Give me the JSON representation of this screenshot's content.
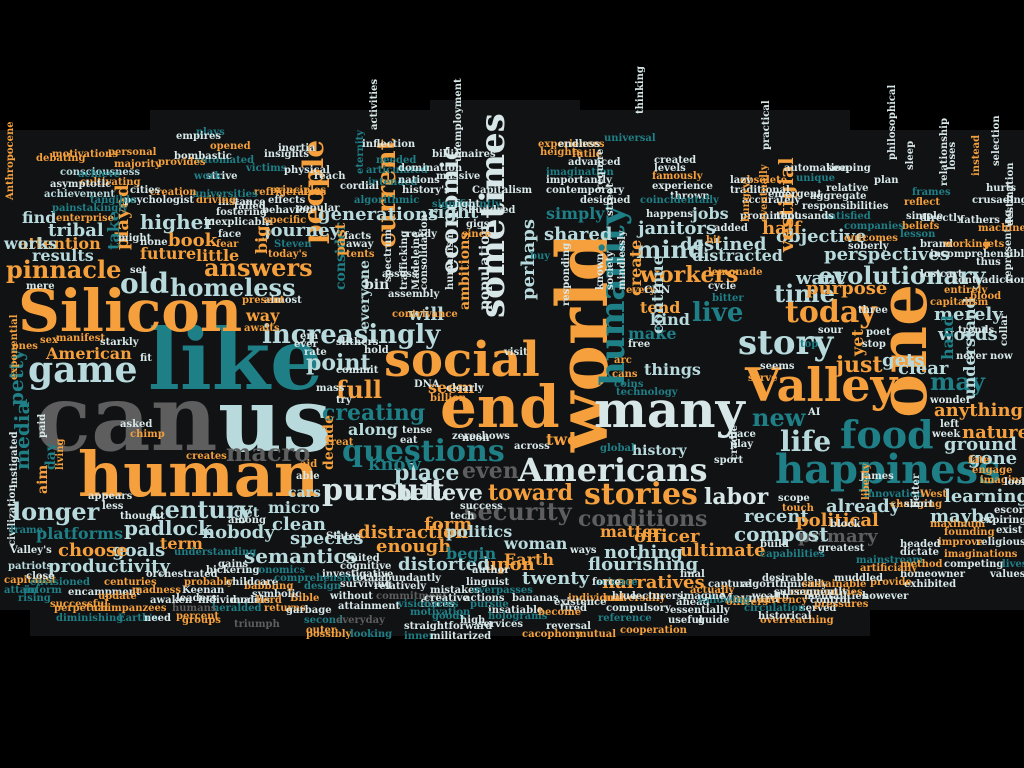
{
  "palette": {
    "background": "#000000",
    "band": "#111214",
    "orange": "#f5a03c",
    "teal": "#1f7f86",
    "light": "#b8dadc",
    "grey": "#5e5e5e",
    "pale": "#d7e7e8"
  },
  "words": {
    "can": "can",
    "us": "us",
    "like": "like",
    "silicon": "Silicon",
    "human": "human",
    "world": "world",
    "one": "one",
    "end": "end",
    "valley": "Valley",
    "social": "social",
    "many": "many",
    "happiness": "happiness",
    "sometimes": "sometimes",
    "humanity": "humanity",
    "food": "food",
    "game": "game",
    "story": "story",
    "americans": "Americans",
    "stories": "stories",
    "questions": "questions",
    "today": "today",
    "life": "life",
    "labor": "labor",
    "increasingly": "increasingly",
    "pinnacle": "pinnacle",
    "old": "old",
    "answers": "answers",
    "homeless": "homeless",
    "people": "people",
    "current": "current",
    "economic": "economic",
    "pursuit": "pursuit",
    "may": "may",
    "evolutionary": "evolutionary",
    "workers": "workers",
    "mind": "mind",
    "live": "live",
    "time": "time",
    "just": "just",
    "new": "new",
    "creating": "creating",
    "point": "point",
    "full": "full",
    "century": "century",
    "longer": "longer",
    "macro": "macro",
    "security": "security",
    "conditions": "conditions",
    "toward": "toward",
    "believe": "believe",
    "even": "even",
    "place": "place",
    "recent": "recent",
    "already": "already",
    "learning": "learning",
    "maybe": "maybe",
    "political": "political",
    "primary": "primary",
    "compost": "compost",
    "officer": "officer",
    "ultimate": "ultimate",
    "nothing": "nothing",
    "flourishing": "flourishing",
    "narratives": "narratives",
    "twenty": "twenty",
    "upon": "upon",
    "earth": "Earth",
    "distorted": "distorted",
    "enough": "enough",
    "semantics": "semantics",
    "species": "species",
    "clean": "clean",
    "nobody": "nobody",
    "padlock": "padlock",
    "goals": "goals",
    "choose": "choose",
    "productivity": "productivity",
    "platforms": "platforms",
    "term": "term",
    "american": "American",
    "petty": "petty",
    "media": "media",
    "results": "results",
    "tribal": "tribal",
    "attention": "attention",
    "works": "works",
    "find": "find",
    "higher": "higher",
    "book": "book",
    "future": "future",
    "little": "little",
    "played": "played",
    "take": "take",
    "journey": "journey",
    "generations": "generations",
    "right": "right",
    "simply": "simply",
    "shared": "shared",
    "perhaps": "perhaps",
    "destined": "destined",
    "distracted": "distracted",
    "janitors": "janitors",
    "jobs": "jobs",
    "half": "half",
    "objective": "objective",
    "perspectives": "perspectives",
    "want": "want",
    "purpose": "purpose",
    "vestigial": "vestigial",
    "merely": "merely",
    "words": "words",
    "understand": "understand",
    "anything": "anything",
    "nature": "nature",
    "ground": "ground",
    "gone": "gone",
    "gets": "gets",
    "clear": "clear",
    "hand": "hand",
    "yet": "yet",
    "kind": "kind",
    "make": "make",
    "tend": "tend",
    "create": "create",
    "things": "things",
    "continue": "continue",
    "will": "will",
    "seem": "seem",
    "along": "along",
    "know": "know",
    "form": "form",
    "distraction": "distraction",
    "begin": "begin",
    "politics": "politics",
    "woman": "woman",
    "matter": "matter",
    "two": "two",
    "history": "history",
    "ambitions": "ambitions",
    "population": "population",
    "everyone": "everyone",
    "consider": "consider",
    "past": "past",
    "decade": "decade",
    "cars": "cars",
    "micro": "micro",
    "get": "get",
    "way": "way",
    "big": "big",
    "might": "might",
    "motivations": "motivations",
    "consciousness": "consciousness",
    "achievement": "achievement",
    "cultivating": "cultivating",
    "painstakingly": "painstakingly",
    "enterprise": "enterprise",
    "debating": "debating",
    "anthropocene": "Anthropocene",
    "exponential": "exponential",
    "inform": "inform",
    "attain": "attain",
    "capitalist": "capitalist",
    "patriots": "patriots",
    "valleys": "Valley's",
    "diminishing": "diminishing",
    "earths": "Earth's",
    "perpetual": "perpetual",
    "chimpanzees": "chimpanzees",
    "encampment": "encampment",
    "successful": "successful",
    "envisioned": "envisioned",
    "update": "update",
    "centuries": "centuries",
    "madness": "madness",
    "orchestrated": "orchestrated",
    "awaken": "awaken",
    "individuals": "individuals",
    "keenan": "Keenan",
    "leaders": "leaders",
    "heralded": "heralded",
    "models": "models",
    "humans": "humans",
    "percent": "percent",
    "groups": "groups",
    "triumph": "triumph",
    "returns": "returns",
    "garbage": "garbage",
    "outer": "outer",
    "second": "second",
    "possibly": "possibly",
    "looking": "looking",
    "everyday": "everyday",
    "attainment": "attainment",
    "without": "without",
    "commitment": "commitment",
    "surviving": "surviving",
    "relatively": "relatively",
    "abundantly": "abundantly",
    "inner": "inner",
    "militarized": "militarized",
    "straightforward": "straightforward",
    "forces": "forces",
    "goods": "goods",
    "high": "high",
    "services": "services",
    "reversal": "reversal",
    "cacophony": "cacophony",
    "mutual": "mutual",
    "cooperation": "cooperation",
    "reference": "reference",
    "compulsory": "compulsory",
    "universally": "universally",
    "guide": "guide",
    "useful": "useful",
    "essentially": "essentially",
    "lecturers": "lecturers",
    "capture": "capture",
    "algorithmically": "algorithmically",
    "maynard": "Maynard",
    "served": "served",
    "circulation": "circulation",
    "overreaching": "overreaching",
    "historical": "historical",
    "mentalities": "mentalities",
    "pressures": "pressures",
    "sustainable": "sustainable",
    "communities": "communities",
    "subsequently": "subsequently",
    "desirable": "desirable",
    "exhibited": "exhibited",
    "homeowner": "homeowner",
    "competing": "competing",
    "imaginations": "imaginations",
    "values": "values",
    "lives": "lives",
    "religious": "religious",
    "improve": "improve",
    "founding": "founding",
    "maximum": "maximum",
    "expiring": "expiring",
    "escort": "escort",
    "exist": "exist",
    "engage": "engage",
    "imaginable": "imaginable",
    "innovation": "innovation",
    "changing": "changing",
    "artificially": "artificially",
    "provide": "provide",
    "mainstream": "mainstream",
    "method": "method",
    "dictate": "dictate",
    "headed": "headed",
    "greatest": "greatest",
    "capabilities": "capabilities",
    "build": "build",
    "blue": "blue",
    "science": "science",
    "individual": "individual",
    "bananas": "bananas",
    "insatiable": "insatiable",
    "holograms": "holograms",
    "actions": "actions",
    "pursue": "pursue",
    "tired": "tired",
    "existence": "existence",
    "motivation": "motivation",
    "creative": "creative",
    "mistakes": "mistakes",
    "overpasses": "overpasses",
    "become": "become",
    "linguist": "linguist",
    "author": "author",
    "visionaries": "visionaries",
    "investigative": "investigative",
    "cognitive": "cognitive",
    "design": "design",
    "bible": "Bible",
    "symbolic": "symbolic",
    "babbling": "babbling",
    "economics": "economics",
    "childcare": "childcare",
    "probably": "probably",
    "understanding": "understanding",
    "comprehensive": "comprehensive",
    "total": "total",
    "states": "States",
    "united": "United",
    "treat": "treat",
    "aid": "aid",
    "able": "able",
    "rate": "rate",
    "hold": "hold",
    "billion": "billion",
    "dna": "DNA",
    "clearly": "clearly",
    "zero": "zero",
    "shows": "shows",
    "across": "across",
    "global": "global",
    "sport": "sport",
    "pace": "pace",
    "play": "play",
    "cradle": "cradle",
    "scope": "scope",
    "touch": "touch",
    "block": "block",
    "fate": "fate",
    "left": "left",
    "week": "week",
    "wonder": "wonder",
    "never": "never",
    "now": "now",
    "trends": "trends",
    "blood": "blood",
    "entirely": "entirely",
    "capitalism": "capitalism",
    "representing": "representing",
    "frames": "frames",
    "reflect": "reflect",
    "simple": "simple",
    "beliefs": "beliefs",
    "lesson": "lesson",
    "brand": "brand",
    "working": "working",
    "machine": "machine",
    "destination": "destination",
    "crusading": "crusading",
    "incomprehensible": "incomprehensible",
    "fathers": "fathers",
    "keeping": "keeping",
    "plan": "plan",
    "relative": "relative",
    "aggregate": "aggregate",
    "responsibilities": "responsibilities",
    "satisfied": "satisfied",
    "thousands": "thousands",
    "companies": "companies",
    "outcomes": "outcomes",
    "soberly": "soberly",
    "emergent": "emergent",
    "accurately": "accurately",
    "prominent": "prominent",
    "traditional": "traditional",
    "obsolete": "obsolete",
    "created": "created",
    "famously": "famously",
    "levels": "levels",
    "experience": "experience",
    "thrown": "thrown",
    "coincidentally": "coincidentally",
    "happens": "happens",
    "advanced": "advanced",
    "futile": "futile",
    "contemporary": "contemporary",
    "designed": "designed",
    "imagination": "imagination",
    "importantly": "importantly",
    "experiences": "experiences",
    "heights": "heights",
    "endless": "endless",
    "universal": "universal",
    "thinking": "thinking",
    "billionaires": "billionaires",
    "massive": "massive",
    "capitalism2": "Capitalism",
    "history_s": "history's",
    "intended": "intended",
    "articulated": "articulated",
    "needed": "needed",
    "domination": "domination",
    "nations": "nations",
    "algorithmic": "algorithmic",
    "eternity": "eternity",
    "inflection": "inflection",
    "activities": "activities",
    "reach": "reach",
    "cordial": "cordial",
    "popular": "popular",
    "effects": "effects",
    "behavior": "behavior",
    "inertia": "inertia",
    "insights": "insights",
    "principles": "principles",
    "failed": "failed",
    "refrigerators": "refrigerators",
    "instance": "instance",
    "fostering": "fostering",
    "inexplicable": "inexplicable",
    "specific": "specific",
    "victims": "victims",
    "physical": "physical",
    "driving": "driving",
    "universities": "universities",
    "automated": "automated",
    "opened": "opened",
    "strive": "strive",
    "work": "work",
    "plays": "plays",
    "empires": "empires",
    "bombastic": "bombastic",
    "creation": "creation",
    "cities": "cities",
    "psychologist": "psychologist",
    "tangible": "tangible",
    "majority": "majority",
    "personal": "personal",
    "achieve": "achieve",
    "asymptotic": "asymptotic",
    "provides": "provides",
    "none": "none",
    "mere": "mere",
    "ones": "ones",
    "sex": "sex",
    "manifest": "manifest",
    "starkly": "starkly",
    "asked": "asked",
    "chimp": "chimp",
    "creates": "creates",
    "less": "less",
    "appears": "appears",
    "among": "among",
    "bickering": "bickering",
    "gains": "gains",
    "herd": "herd",
    "day": "day",
    "aim": "aim",
    "paid": "paid",
    "living": "living",
    "instigated": "instigated",
    "civilization": "civilization",
    "close": "close",
    "rising": "rising",
    "need": "need",
    "ever": "ever",
    "era": "era",
    "almost": "almost",
    "present": "present",
    "awaits": "awaits",
    "face": "face",
    "fear": "fear",
    "steven": "Steven",
    "todays": "today's",
    "facts": "facts",
    "away": "away",
    "tents": "tents",
    "ready": "ready",
    "bin": "bin",
    "assess": "assess",
    "neon": "neon",
    "eat": "eat",
    "tense": "tense",
    "tech": "tech",
    "success": "success",
    "gigs": "gigs",
    "since": "since",
    "ways": "ways",
    "buy": "buy",
    "require": "require",
    "street": "street",
    "known": "known",
    "society": "society",
    "mindlessly": "mindlessly",
    "visit": "visit",
    "responding": "responding",
    "cycle": "cycle",
    "lemonade": "lemonade",
    "bitter": "bitter",
    "every": "every",
    "cnn": "CNN",
    "free": "free",
    "cans": "cans",
    "arc": "arc",
    "coins": "coins",
    "technology": "technology",
    "force": "force",
    "final": "final",
    "ahead": "ahead",
    "actually": "actually",
    "officers": "officers",
    "following": "following",
    "wealth": "wealth",
    "currency": "currency",
    "imagine": "imagine",
    "control": "control",
    "however": "however",
    "muddled": "muddled",
    "lazy": "lazy",
    "practical": "practical",
    "added": "added",
    "bit": "bit",
    "ai": "AI",
    "stop": "stop",
    "poet": "poet",
    "three": "three",
    "sour": "sour",
    "seems": "seems",
    "serve": "serve",
    "top": "top",
    "james": "James",
    "liberty": "liberty",
    "short": "short",
    "west": "West",
    "better": "better",
    "look": "look",
    "collar": "collar",
    "jets": "jets",
    "thus": "thus",
    "loses": "loses",
    "sleep": "sleep",
    "hungry": "hungry",
    "eventually": "eventually",
    "unique": "unique",
    "automation": "automation",
    "philosophical": "philosophical",
    "directly": "directly",
    "relationship": "relationship",
    "hurts": "hurts",
    "instead": "instead",
    "selection": "selection",
    "significantly": "significantly",
    "unemployment": "unemployment",
    "fight": "fight",
    "hundred": "hundred",
    "contradictions": "contradictions",
    "lost": "lost",
    "cart": "cart",
    "slithers": "slithers",
    "assembly": "assembly",
    "spectrum": "spectrum",
    "trafficking": "trafficking",
    "contrivance": "contrivance",
    "madeleine": "Madeleine",
    "mass": "mass",
    "try": "try",
    "commit": "commit",
    "consolidation": "consolidation",
    "humanism": "humanism",
    "thought": "thought",
    "set": "set",
    "fit": "fit",
    "frame": "frame"
  }
}
